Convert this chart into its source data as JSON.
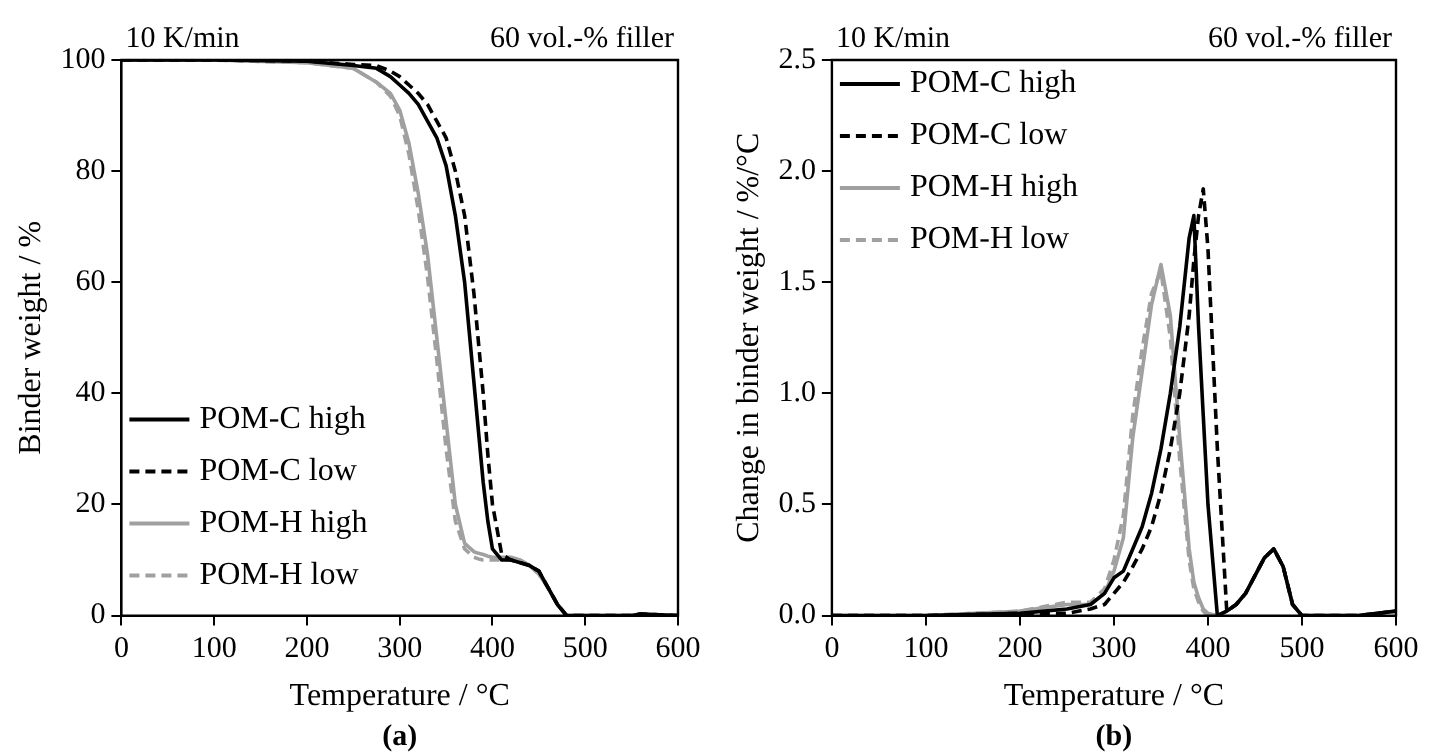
{
  "chart_data": [
    {
      "type": "line",
      "xlabel": "Temperature / °C",
      "ylabel": "Binder weight / %",
      "annotations": [
        "10 K/min",
        "60 vol.-% filler",
        "(a)"
      ],
      "x": [
        0,
        100,
        200,
        250,
        275,
        290,
        300,
        310,
        320,
        330,
        340,
        350,
        360,
        370,
        380,
        385,
        390,
        395,
        400,
        410,
        420,
        430,
        440,
        450,
        460,
        470,
        480,
        490,
        500,
        550,
        560,
        600
      ],
      "xlim": [
        0,
        600
      ],
      "xticks": [
        0,
        100,
        200,
        300,
        400,
        500,
        600
      ],
      "ylim": [
        0,
        100
      ],
      "yticks": [
        0,
        20,
        40,
        60,
        80,
        100
      ],
      "grid": false,
      "legend": "bottom left",
      "marker": "none",
      "series": [
        {
          "name": "POM-C high",
          "color": "#000000",
          "line_style": "solid",
          "values": [
            100,
            100,
            99.8,
            99,
            98.5,
            97,
            95.5,
            94,
            92,
            89,
            86,
            81,
            72,
            60,
            42,
            33,
            24,
            17,
            12,
            10,
            10,
            9.5,
            9,
            8,
            5,
            2,
            0,
            0,
            0,
            0,
            0.3,
            0
          ]
        },
        {
          "name": "POM-C low",
          "color": "#000000",
          "line_style": "dashed",
          "values": [
            100,
            100,
            99.8,
            99.2,
            99,
            98,
            97,
            95.5,
            94,
            92,
            89,
            86,
            80,
            72,
            58,
            49,
            40,
            29,
            20,
            11,
            10,
            9.5,
            9,
            8,
            5,
            2,
            0,
            0,
            0,
            0,
            0.3,
            0
          ]
        },
        {
          "name": "POM-H high",
          "color": "#a0a0a0",
          "line_style": "solid",
          "values": [
            100,
            100,
            99.5,
            98.5,
            96,
            94,
            91,
            85,
            76,
            65,
            50,
            35,
            20,
            13,
            11.5,
            11.2,
            11,
            10.7,
            10.5,
            10.5,
            10.5,
            10,
            9,
            7.5,
            5,
            2,
            0,
            0,
            0,
            0,
            0.3,
            0
          ]
        },
        {
          "name": "POM-H low",
          "color": "#a0a0a0",
          "line_style": "dashed",
          "values": [
            100,
            100,
            99.5,
            98.5,
            96,
            93.5,
            90,
            83,
            73,
            61,
            46,
            30,
            17,
            12,
            10.5,
            10.2,
            10,
            10,
            10,
            10,
            10,
            10,
            9,
            7.5,
            5,
            2,
            0,
            0,
            0,
            0,
            0.3,
            0
          ]
        }
      ]
    },
    {
      "type": "line",
      "xlabel": "Temperature / °C",
      "ylabel": "Change in binder weight / %/°C",
      "annotations": [
        "10 K/min",
        "60 vol.-% filler",
        "(b)"
      ],
      "x": [
        0,
        100,
        200,
        250,
        275,
        290,
        300,
        310,
        320,
        330,
        340,
        350,
        360,
        370,
        380,
        385,
        390,
        395,
        400,
        410,
        420,
        430,
        440,
        450,
        460,
        470,
        480,
        490,
        500,
        550,
        560,
        600
      ],
      "xlim": [
        0,
        600
      ],
      "xticks": [
        0,
        100,
        200,
        300,
        400,
        500,
        600
      ],
      "ylim": [
        0,
        2.5
      ],
      "yticks": [
        {
          "value": 0,
          "label": "0.0"
        },
        {
          "value": 0.5,
          "label": "0.5"
        },
        {
          "value": 1,
          "label": "1.0"
        },
        {
          "value": 1.5,
          "label": "1.5"
        },
        {
          "value": 2,
          "label": "2.0"
        },
        {
          "value": 2.5,
          "label": "2.5"
        }
      ],
      "grid": false,
      "legend": "top left",
      "marker": "none",
      "series": [
        {
          "name": "POM-C high",
          "color": "#000000",
          "line_style": "solid",
          "values": [
            0,
            0,
            0.01,
            0.03,
            0.05,
            0.1,
            0.17,
            0.2,
            0.3,
            0.4,
            0.55,
            0.75,
            1.0,
            1.3,
            1.7,
            1.8,
            1.3,
            0.9,
            0.5,
            0,
            0.02,
            0.05,
            0.1,
            0.18,
            0.26,
            0.3,
            0.22,
            0.05,
            0,
            0,
            0,
            0.02
          ]
        },
        {
          "name": "POM-C low",
          "color": "#000000",
          "line_style": "dashed",
          "values": [
            0,
            0,
            0.01,
            0.01,
            0.03,
            0.05,
            0.1,
            0.15,
            0.22,
            0.3,
            0.4,
            0.55,
            0.75,
            1.0,
            1.35,
            1.6,
            1.8,
            1.92,
            1.65,
            0.75,
            0.02,
            0.05,
            0.1,
            0.18,
            0.26,
            0.3,
            0.22,
            0.05,
            0,
            0,
            0,
            0.02
          ]
        },
        {
          "name": "POM-H high",
          "color": "#a0a0a0",
          "line_style": "solid",
          "values": [
            0,
            0,
            0.02,
            0.05,
            0.05,
            0.1,
            0.2,
            0.35,
            0.8,
            1.1,
            1.4,
            1.58,
            1.35,
            0.8,
            0.3,
            0.15,
            0.08,
            0.03,
            0.01,
            0,
            0.02,
            0.05,
            0.1,
            0.18,
            0.26,
            0.3,
            0.22,
            0.05,
            0,
            0,
            0,
            0.02
          ]
        },
        {
          "name": "POM-H low",
          "color": "#a0a0a0",
          "line_style": "dashed",
          "values": [
            0,
            0,
            0.02,
            0.06,
            0.06,
            0.12,
            0.25,
            0.45,
            0.9,
            1.2,
            1.45,
            1.55,
            1.25,
            0.7,
            0.25,
            0.12,
            0.06,
            0.02,
            0,
            0,
            0.02,
            0.05,
            0.1,
            0.18,
            0.26,
            0.3,
            0.22,
            0.05,
            0,
            0,
            0,
            0.02
          ]
        }
      ]
    }
  ]
}
